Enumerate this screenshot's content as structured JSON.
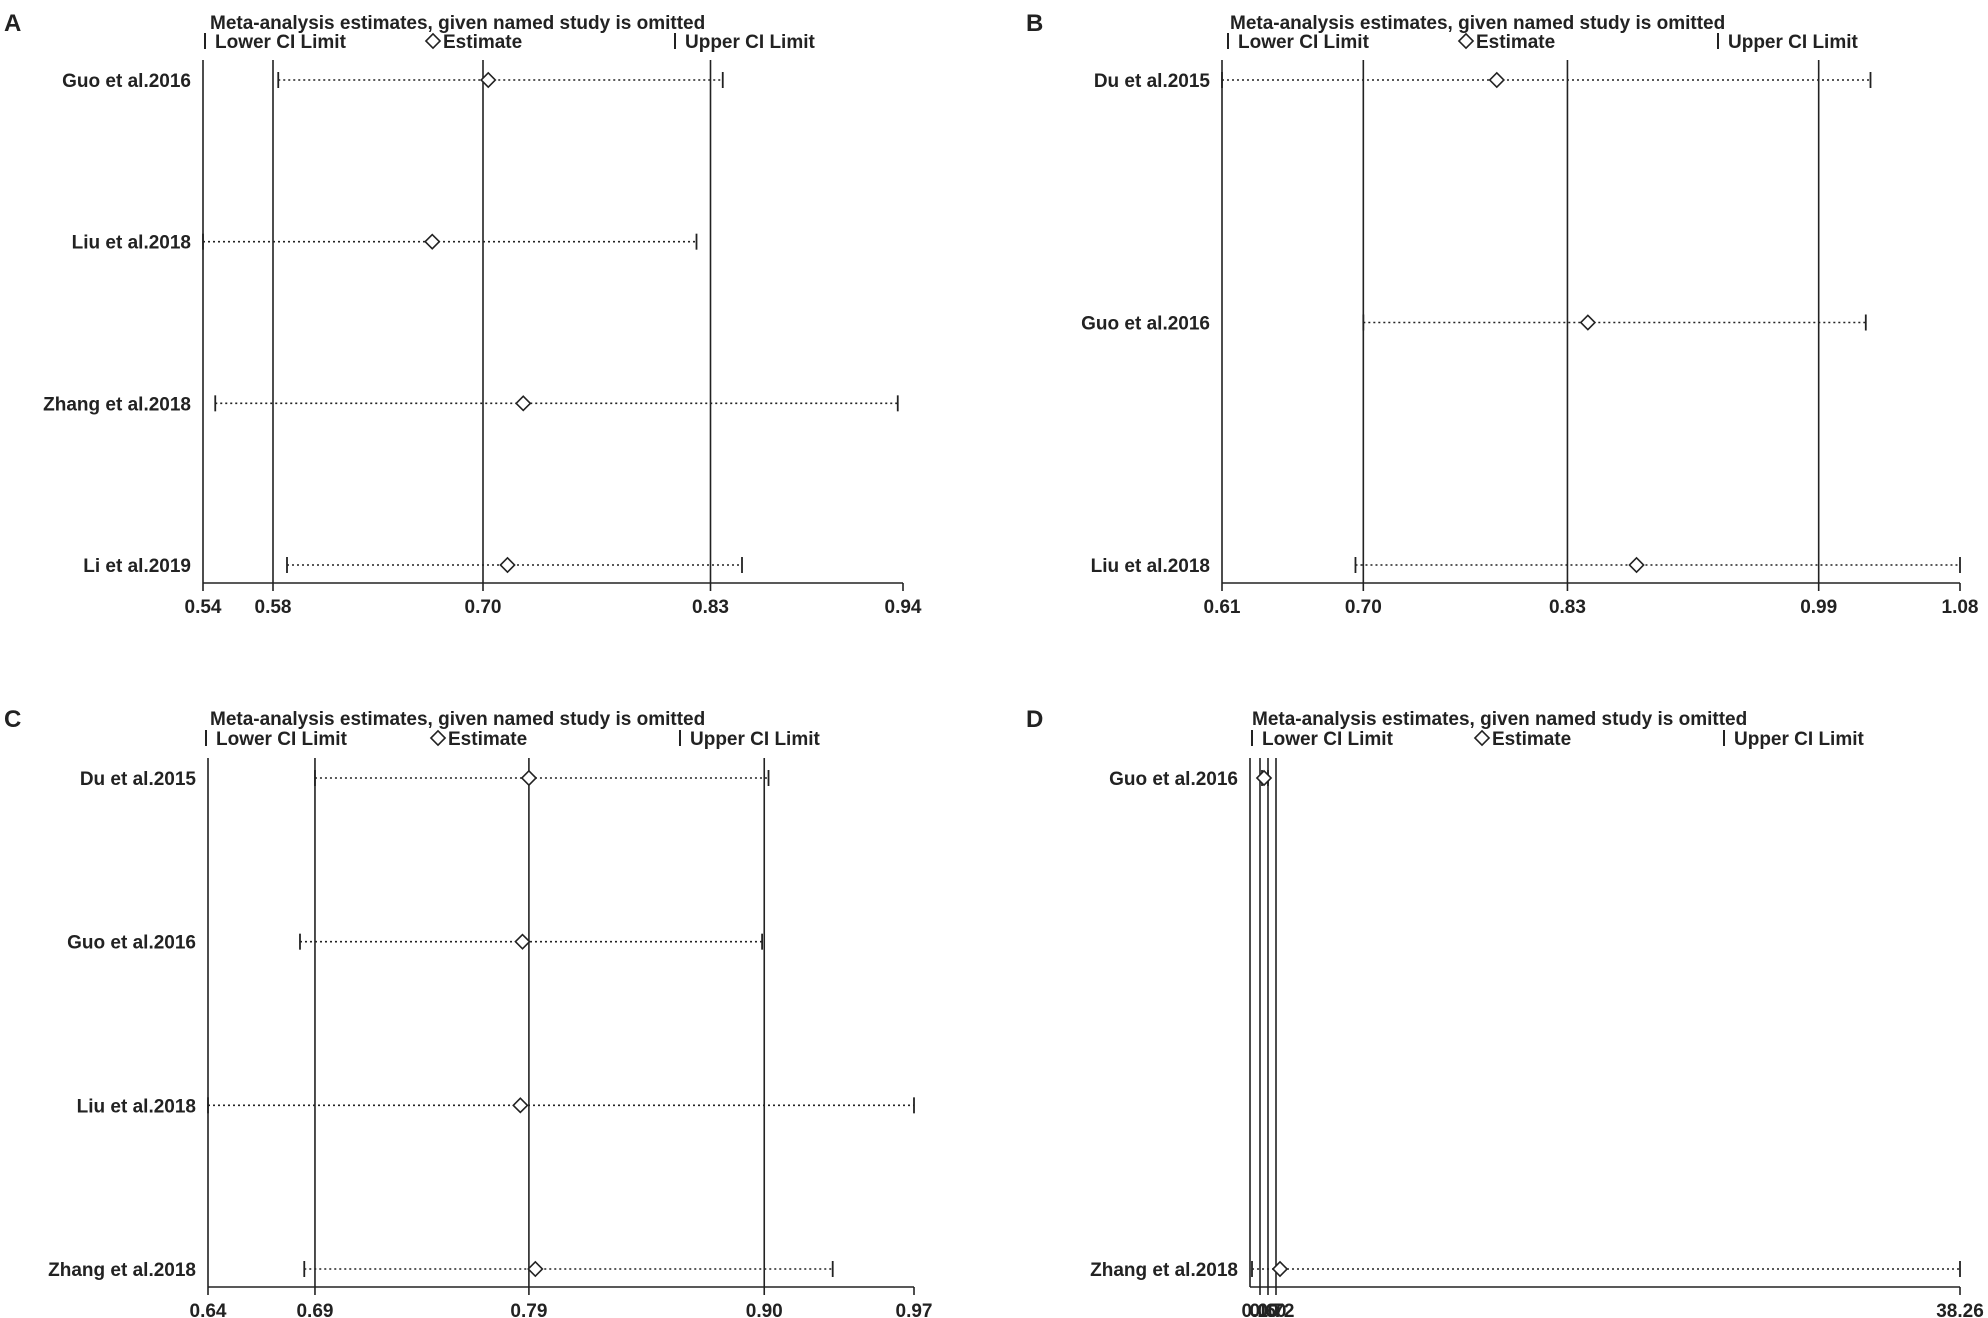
{
  "chart_data": [
    {
      "panel": "A",
      "type": "scatter",
      "title": "Meta-analysis estimates, given named study is omitted",
      "legend": [
        "Lower CI Limit",
        "Estimate",
        "Upper CI Limit"
      ],
      "legend_placement": "top",
      "categories": [
        "Guo et al.2016",
        "Liu et al.2018",
        "Zhang et al.2018",
        "Li et al.2019"
      ],
      "xticks": [
        "0.54",
        "0.58",
        "0.70",
        "0.83",
        "0.94"
      ],
      "xlim": [
        0.54,
        0.94
      ],
      "reference_lines": [
        0.58,
        0.7,
        0.83
      ],
      "series": [
        {
          "name": "Lower CI Limit",
          "values": [
            0.583,
            0.54,
            0.547,
            0.588
          ]
        },
        {
          "name": "Estimate",
          "values": [
            0.703,
            0.671,
            0.723,
            0.714
          ]
        },
        {
          "name": "Upper CI Limit",
          "values": [
            0.837,
            0.822,
            0.937,
            0.848
          ]
        }
      ]
    },
    {
      "panel": "B",
      "type": "scatter",
      "title": "Meta-analysis estimates, given named study is omitted",
      "legend": [
        "Lower CI Limit",
        "Estimate",
        "Upper CI Limit"
      ],
      "legend_placement": "top",
      "categories": [
        "Du et al.2015",
        "Guo et al.2016",
        "Liu et al.2018"
      ],
      "xticks": [
        "0.61",
        "0.70",
        "0.83",
        "0.99",
        "1.08"
      ],
      "xlim": [
        0.61,
        1.08
      ],
      "reference_lines": [
        0.7,
        0.83,
        0.99
      ],
      "series": [
        {
          "name": "Lower CI Limit",
          "values": [
            0.61,
            0.7,
            0.695
          ]
        },
        {
          "name": "Estimate",
          "values": [
            0.785,
            0.843,
            0.874
          ]
        },
        {
          "name": "Upper CI Limit",
          "values": [
            1.023,
            1.02,
            1.08
          ]
        }
      ]
    },
    {
      "panel": "C",
      "type": "scatter",
      "title": "Meta-analysis estimates, given named study is omitted",
      "legend": [
        "Lower CI Limit",
        "Estimate",
        "Upper CI Limit"
      ],
      "legend_placement": "top",
      "categories": [
        "Du et al.2015",
        "Guo et al.2016",
        "Liu et al.2018",
        "Zhang et al.2018"
      ],
      "xticks": [
        "0.64",
        "0.69",
        "0.79",
        "0.90",
        "0.97"
      ],
      "xlim": [
        0.64,
        0.97
      ],
      "reference_lines": [
        0.69,
        0.79,
        0.9
      ],
      "series": [
        {
          "name": "Lower CI Limit",
          "values": [
            0.69,
            0.683,
            0.64,
            0.685
          ]
        },
        {
          "name": "Estimate",
          "values": [
            0.79,
            0.787,
            0.786,
            0.793
          ]
        },
        {
          "name": "Upper CI Limit",
          "values": [
            0.902,
            0.899,
            0.97,
            0.932
          ]
        }
      ]
    },
    {
      "panel": "D",
      "type": "scatter",
      "title": "Meta-analysis estimates, given named study is omitted",
      "legend": [
        "Lower CI Limit",
        "Estimate",
        "Upper CI Limit"
      ],
      "legend_placement": "top",
      "categories": [
        "Guo et al.2016",
        "Zhang et al.2018"
      ],
      "xticks": [
        "0.10",
        "0.60",
        "0.72",
        "38.26"
      ],
      "xticks_shown_text": [
        "0.10",
        "0.60",
        "0.72",
        "38.26"
      ],
      "xlim": [
        0.0,
        38.26
      ],
      "reference_lines": [
        0.1,
        0.6,
        0.72
      ],
      "series": [
        {
          "name": "Lower CI Limit",
          "values": [
            0.15,
            0.0
          ]
        },
        {
          "name": "Estimate",
          "values": [
            0.3,
            1.2
          ]
        },
        {
          "name": "Upper CI Limit",
          "values": [
            0.55,
            38.26
          ]
        }
      ]
    }
  ],
  "panel_labels": [
    "A",
    "B",
    "C",
    "D"
  ],
  "colors": {
    "axis": "#222222",
    "text": "#222222"
  }
}
